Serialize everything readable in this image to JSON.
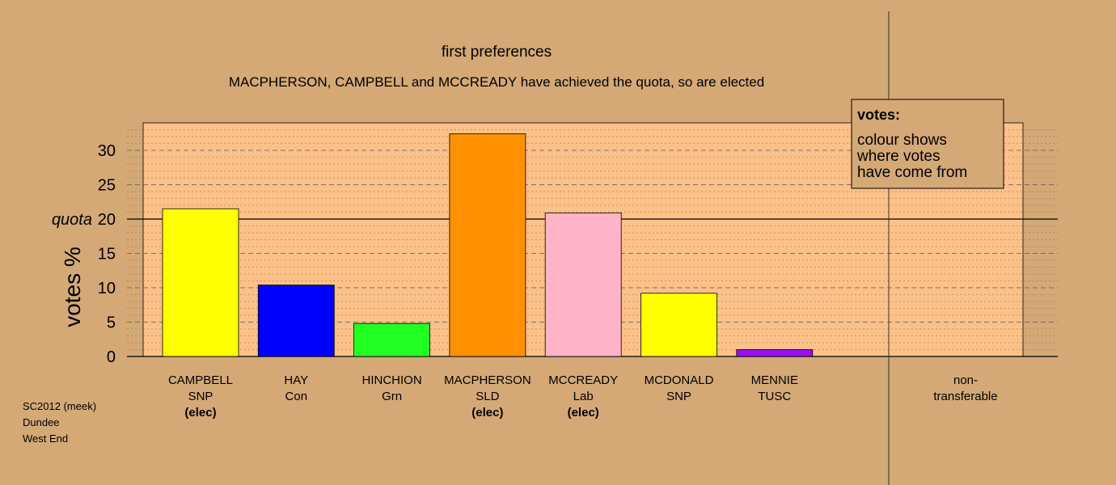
{
  "chart_data": {
    "type": "bar",
    "title": "first preferences",
    "subtitle": "MACPHERSON, CAMPBELL and MCCREADY have achieved the quota, so are elected",
    "ylabel": "votes %",
    "ylim": [
      0,
      34
    ],
    "yticks": [
      0,
      5,
      10,
      15,
      20,
      25,
      30
    ],
    "quota": 20,
    "quota_label": "quota",
    "candidates": [
      {
        "name": "CAMPBELL",
        "party": "SNP",
        "value": 21.5,
        "elected": true,
        "color": "#ffff00"
      },
      {
        "name": "HAY",
        "party": "Con",
        "value": 10.4,
        "elected": false,
        "color": "#0000ff"
      },
      {
        "name": "HINCHION",
        "party": "Grn",
        "value": 4.8,
        "elected": false,
        "color": "#22ff22"
      },
      {
        "name": "MACPHERSON",
        "party": "SLD",
        "value": 32.4,
        "elected": true,
        "color": "#ff9100"
      },
      {
        "name": "MCCREADY",
        "party": "Lab",
        "value": 20.9,
        "elected": true,
        "color": "#ffb3c6"
      },
      {
        "name": "MCDONALD",
        "party": "SNP",
        "value": 9.2,
        "elected": false,
        "color": "#ffff00"
      },
      {
        "name": "MENNIE",
        "party": "TUSC",
        "value": 1.0,
        "elected": false,
        "color": "#9a0ff0"
      }
    ],
    "elected_label": "(elec)",
    "nontransferable": {
      "line1": "non-",
      "line2": "transferable",
      "value": 0
    },
    "legend": {
      "title": "votes:",
      "lines": [
        "colour shows",
        "where votes",
        "have come from"
      ]
    }
  },
  "source": {
    "lines": [
      "SC2012 (meek)",
      "Dundee",
      "West End"
    ]
  },
  "colors": {
    "background": "#d4a976",
    "plot_background": "#fbc188",
    "bar_outline": "#000000"
  }
}
